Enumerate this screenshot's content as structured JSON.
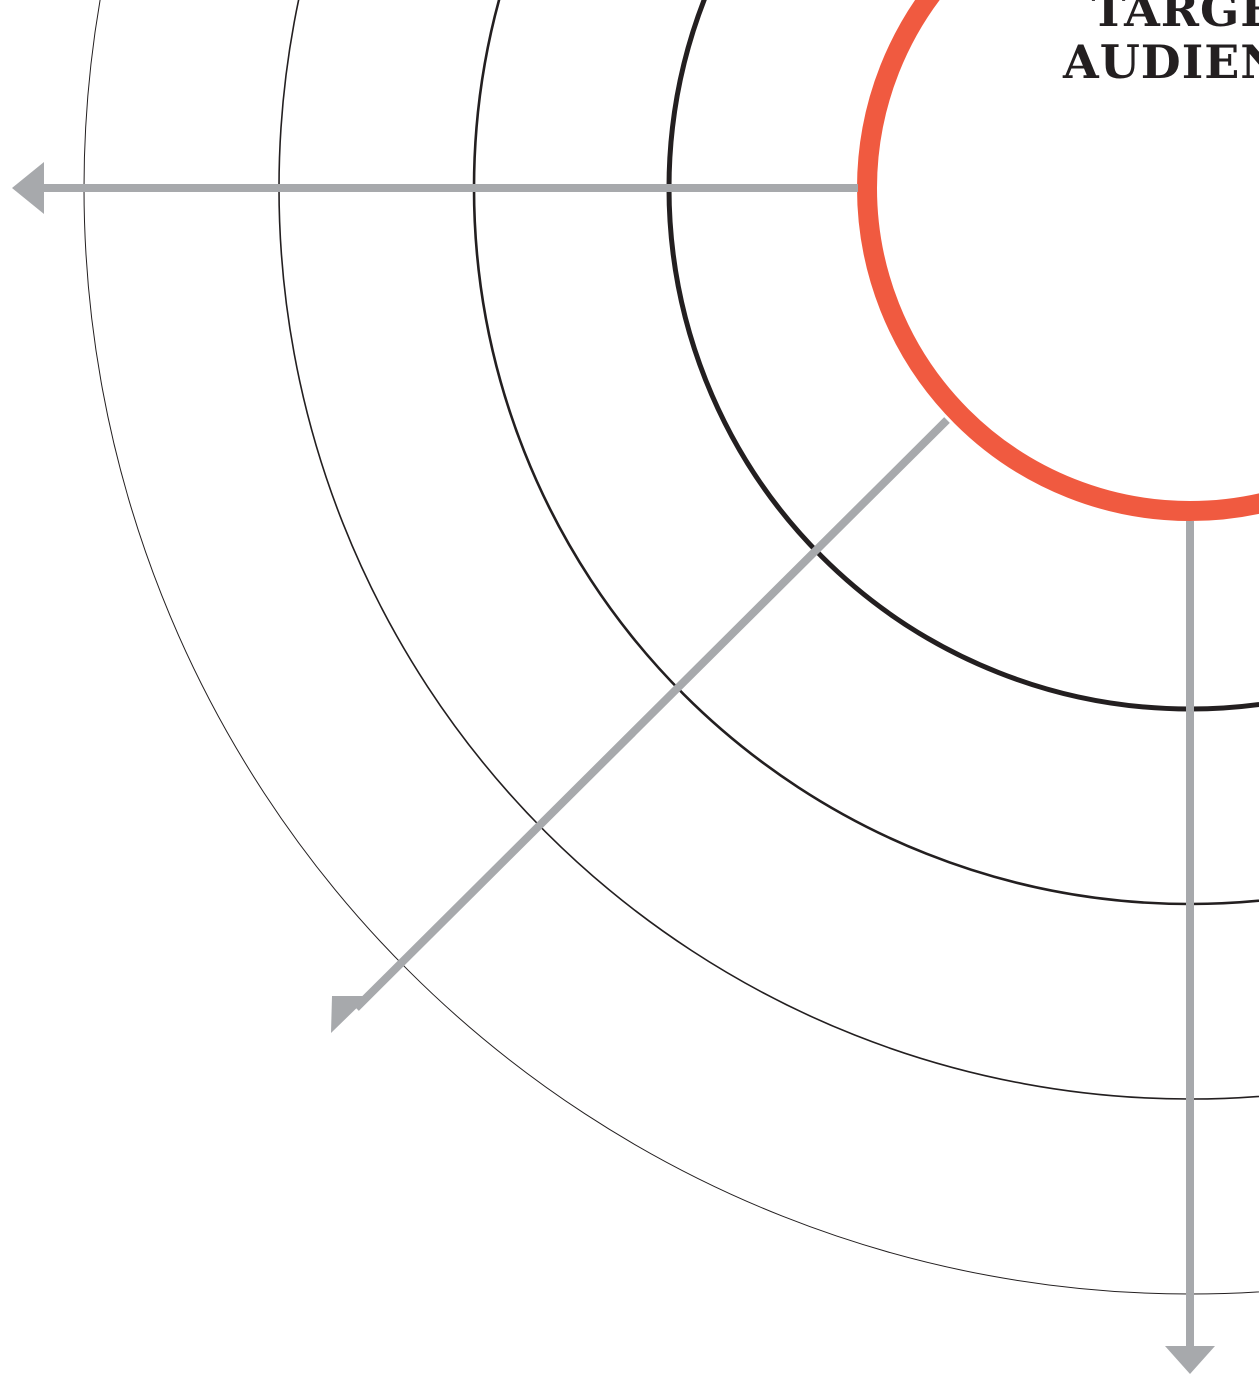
{
  "diagram": {
    "center_label_lines": [
      "TARGET",
      "AUDIENCE"
    ],
    "rings": [
      {
        "name": "core",
        "color": "#f05a40"
      },
      {
        "name": "ring-2",
        "color": "#231f20"
      },
      {
        "name": "ring-3",
        "color": "#231f20"
      },
      {
        "name": "ring-4",
        "color": "#231f20"
      },
      {
        "name": "ring-5",
        "color": "#231f20"
      },
      {
        "name": "ring-6",
        "color": "#231f20"
      }
    ],
    "arrows": [
      {
        "name": "arrow-left",
        "direction": "left"
      },
      {
        "name": "arrow-down-left",
        "direction": "down-left"
      },
      {
        "name": "arrow-down",
        "direction": "down"
      }
    ],
    "colors": {
      "accent": "#f05a40",
      "ring": "#231f20",
      "arrow": "#a7a9ac",
      "background": "#ffffff"
    }
  }
}
